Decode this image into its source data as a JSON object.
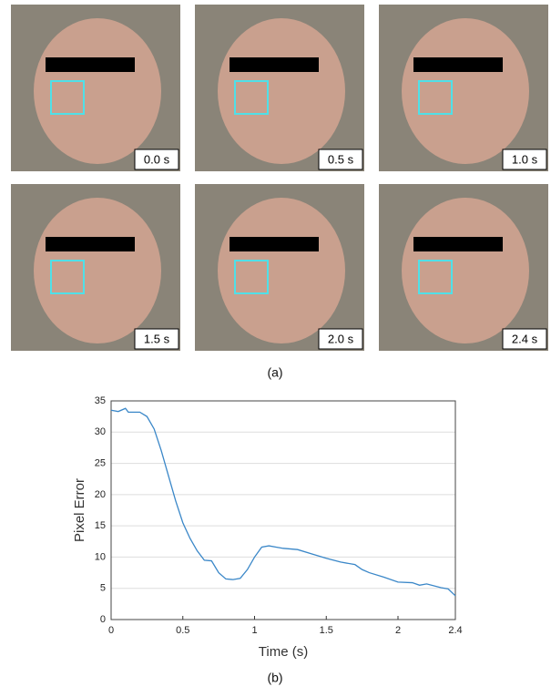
{
  "figure": {
    "panels": [
      {
        "label": "0.0 s"
      },
      {
        "label": "0.5 s"
      },
      {
        "label": "1.0 s"
      },
      {
        "label": "1.5 s"
      },
      {
        "label": "2.0 s"
      },
      {
        "label": "2.4 s"
      }
    ],
    "caption_a": "(a)",
    "caption_b": "(b)"
  },
  "chart_data": {
    "type": "line",
    "x_label": "Time (s)",
    "y_label": "Pixel Error",
    "x": [
      0,
      0.05,
      0.1,
      0.12,
      0.2,
      0.25,
      0.3,
      0.35,
      0.4,
      0.45,
      0.5,
      0.55,
      0.6,
      0.65,
      0.7,
      0.75,
      0.8,
      0.85,
      0.9,
      0.95,
      1.0,
      1.05,
      1.1,
      1.15,
      1.2,
      1.3,
      1.4,
      1.5,
      1.6,
      1.7,
      1.75,
      1.8,
      1.9,
      2.0,
      2.1,
      2.15,
      2.2,
      2.3,
      2.35,
      2.4
    ],
    "values": [
      33.5,
      33.3,
      33.8,
      33.2,
      33.2,
      32.5,
      30.5,
      27,
      23,
      19,
      15.5,
      13,
      11,
      9.5,
      9.4,
      7.5,
      6.5,
      6.4,
      6.6,
      8,
      10,
      11.6,
      11.8,
      11.6,
      11.4,
      11.2,
      10.5,
      9.8,
      9.2,
      8.8,
      8,
      7.5,
      6.8,
      6.0,
      5.9,
      5.5,
      5.7,
      5.1,
      4.9,
      3.8
    ],
    "color": "#3a87c8",
    "xlim": [
      0,
      2.4
    ],
    "xticks": [
      0,
      0.5,
      1,
      1.5,
      2,
      2.4
    ],
    "ylim": [
      0,
      35
    ],
    "yticks": [
      0,
      5,
      10,
      15,
      20,
      25,
      30,
      35
    ],
    "grid": true
  }
}
